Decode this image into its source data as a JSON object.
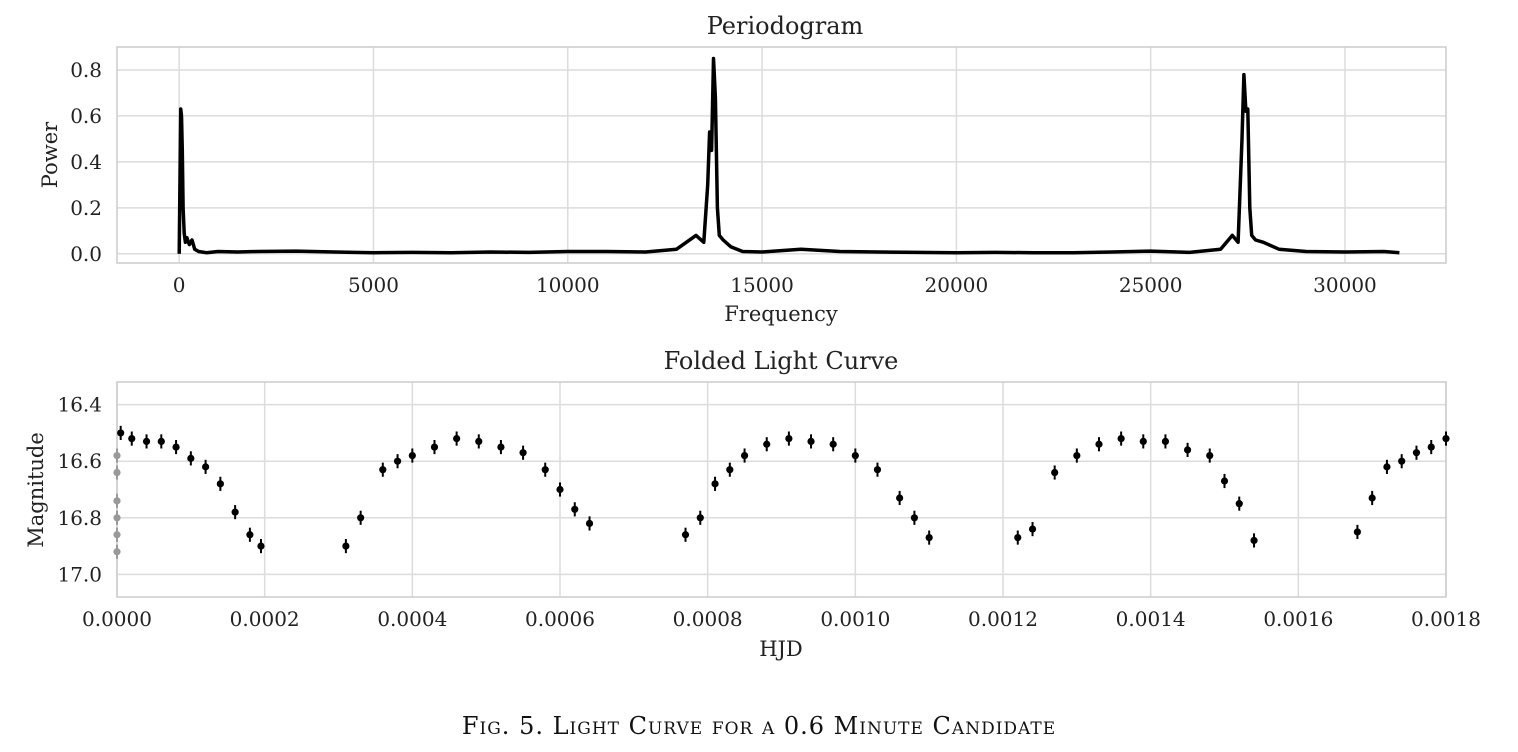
{
  "caption": "Fig. 5. Light Curve for a 0.6 Minute Candidate",
  "chart_data": [
    {
      "type": "line",
      "title": "Periodogram",
      "xlabel": "Frequency",
      "ylabel": "Power",
      "xlim": [
        -1600,
        32600
      ],
      "ylim": [
        -0.04,
        0.9
      ],
      "xticks": [
        0,
        5000,
        10000,
        15000,
        20000,
        25000,
        30000
      ],
      "yticks": [
        0.0,
        0.2,
        0.4,
        0.6,
        0.8
      ],
      "xtick_labels": [
        "0",
        "5000",
        "10000",
        "15000",
        "20000",
        "25000",
        "30000"
      ],
      "ytick_labels": [
        "0.0",
        "0.2",
        "0.4",
        "0.6",
        "0.8"
      ],
      "grid": true,
      "series": [
        {
          "color": "#000000",
          "x": [
            0,
            40,
            60,
            80,
            100,
            130,
            160,
            200,
            260,
            330,
            400,
            500,
            700,
            1000,
            1500,
            2000,
            3000,
            4000,
            5000,
            6000,
            7000,
            8000,
            9000,
            10000,
            11000,
            12000,
            12800,
            13300,
            13500,
            13600,
            13650,
            13700,
            13750,
            13800,
            13850,
            13900,
            14000,
            14200,
            14500,
            15000,
            16000,
            17000,
            18000,
            19000,
            20000,
            21000,
            22000,
            23000,
            24000,
            25000,
            26000,
            26800,
            27100,
            27250,
            27350,
            27400,
            27450,
            27500,
            27550,
            27600,
            27700,
            27900,
            28300,
            29000,
            30000,
            31000,
            31400
          ],
          "y": [
            0.0,
            0.63,
            0.6,
            0.45,
            0.2,
            0.09,
            0.05,
            0.07,
            0.04,
            0.06,
            0.02,
            0.01,
            0.005,
            0.01,
            0.008,
            0.01,
            0.012,
            0.008,
            0.005,
            0.006,
            0.005,
            0.008,
            0.006,
            0.01,
            0.01,
            0.008,
            0.02,
            0.08,
            0.05,
            0.3,
            0.53,
            0.45,
            0.85,
            0.68,
            0.2,
            0.08,
            0.06,
            0.03,
            0.01,
            0.008,
            0.02,
            0.01,
            0.008,
            0.006,
            0.005,
            0.006,
            0.005,
            0.005,
            0.008,
            0.012,
            0.006,
            0.02,
            0.08,
            0.05,
            0.5,
            0.78,
            0.62,
            0.63,
            0.2,
            0.08,
            0.06,
            0.05,
            0.02,
            0.01,
            0.008,
            0.01,
            0.005
          ]
        }
      ]
    },
    {
      "type": "scatter",
      "title": "Folded Light Curve",
      "xlabel": "HJD",
      "ylabel": "Magnitude",
      "xlim": [
        0.0,
        0.0018
      ],
      "ylim": [
        17.08,
        16.32
      ],
      "y_inverted": true,
      "xticks": [
        0.0,
        0.0002,
        0.0004,
        0.0006,
        0.0008,
        0.001,
        0.0012,
        0.0014,
        0.0016,
        0.0018
      ],
      "yticks": [
        16.4,
        16.6,
        16.8,
        17.0
      ],
      "xtick_labels": [
        "0.0000",
        "0.0002",
        "0.0004",
        "0.0006",
        "0.0008",
        "0.0010",
        "0.0012",
        "0.0014",
        "0.0016",
        "0.0018"
      ],
      "ytick_labels": [
        "16.4",
        "16.6",
        "16.8",
        "17.0"
      ],
      "grid": true,
      "error_bar": 0.025,
      "series": [
        {
          "color": "#000000",
          "x": [
            5e-06,
            2e-05,
            4e-05,
            6e-05,
            8e-05,
            0.0001,
            0.00012,
            0.00014,
            0.00016,
            0.00018,
            0.000195,
            0.00031,
            0.00033,
            0.00036,
            0.00038,
            0.0004,
            0.00043,
            0.00046,
            0.00049,
            0.00052,
            0.00055,
            0.00058,
            0.0006,
            0.00062,
            0.00064,
            0.00077,
            0.00079,
            0.00081,
            0.00083,
            0.00085,
            0.00088,
            0.00091,
            0.00094,
            0.00097,
            0.001,
            0.00103,
            0.00106,
            0.00108,
            0.0011,
            0.00122,
            0.00124,
            0.00127,
            0.0013,
            0.00133,
            0.00136,
            0.00139,
            0.00142,
            0.00145,
            0.00148,
            0.0015,
            0.00152,
            0.00154,
            0.00168,
            0.0017,
            0.00172,
            0.00174,
            0.00176,
            0.00178,
            0.0018
          ],
          "y": [
            16.5,
            16.52,
            16.53,
            16.53,
            16.55,
            16.59,
            16.62,
            16.68,
            16.78,
            16.86,
            16.9,
            16.9,
            16.8,
            16.63,
            16.6,
            16.58,
            16.55,
            16.52,
            16.53,
            16.55,
            16.57,
            16.63,
            16.7,
            16.77,
            16.82,
            16.86,
            16.8,
            16.68,
            16.63,
            16.58,
            16.54,
            16.52,
            16.53,
            16.54,
            16.58,
            16.63,
            16.73,
            16.8,
            16.87,
            16.87,
            16.84,
            16.64,
            16.58,
            16.54,
            16.52,
            16.53,
            16.53,
            16.56,
            16.58,
            16.67,
            16.75,
            16.88,
            16.85,
            16.73,
            16.62,
            16.6,
            16.57,
            16.55,
            16.52
          ]
        },
        {
          "color": "#999999",
          "x": [
            0.0,
            0.0,
            0.0,
            0.0,
            0.0,
            0.0
          ],
          "y": [
            16.58,
            16.64,
            16.74,
            16.8,
            16.86,
            16.92
          ]
        }
      ]
    }
  ]
}
